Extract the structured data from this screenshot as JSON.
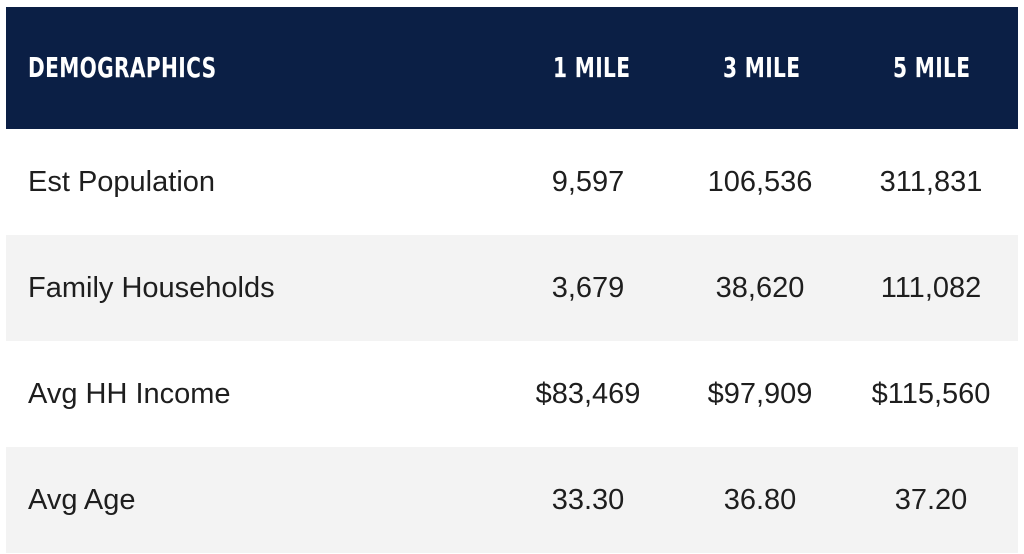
{
  "header": {
    "title": "DEMOGRAPHICS",
    "columns": [
      "1 MILE",
      "3 MILE",
      "5 MILE"
    ]
  },
  "rows": [
    {
      "label": "Est Population",
      "values": [
        "9,597",
        "106,536",
        "311,831"
      ]
    },
    {
      "label": "Family Households",
      "values": [
        "3,679",
        "38,620",
        "111,082"
      ]
    },
    {
      "label": "Avg HH Income",
      "values": [
        "$83,469",
        "$97,909",
        "$115,560"
      ]
    },
    {
      "label": "Avg Age",
      "values": [
        "33.30",
        "36.80",
        "37.20"
      ]
    }
  ],
  "colors": {
    "header_bg": "#0b1f45",
    "header_text": "#ffffff",
    "alt_row_bg": "#f3f3f3",
    "text": "#1e1e1e"
  }
}
